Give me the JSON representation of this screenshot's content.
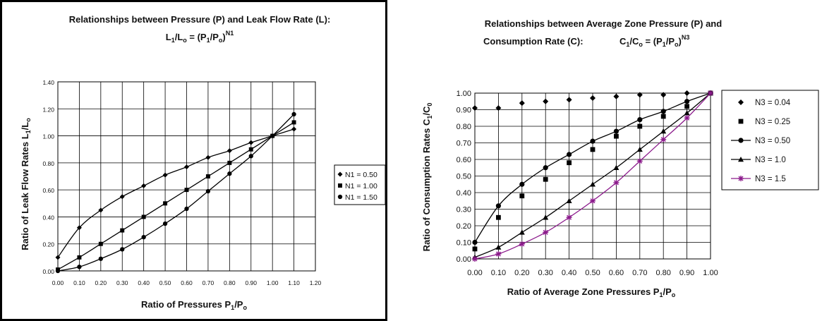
{
  "chart_data": [
    {
      "type": "line",
      "title_line1": "Relationships between Pressure (P) and Leak Flow Rate (L):",
      "formula": {
        "a": "L",
        "a_sub": "1",
        "mid": "/L",
        "b_sub": "o",
        "eq": " = (P",
        "p1_sub": "1",
        "slash": "/P",
        "po_sub": "o",
        "close": ")",
        "exp": "N1"
      },
      "xlabel": {
        "text": "Ratio of Pressures P",
        "sub1": "1",
        "mid": "/P",
        "sub2": "o"
      },
      "ylabel": {
        "text": "Ratio of Leak Flow Rates L",
        "sub1": "1",
        "mid": "/L",
        "sub2": "o"
      },
      "x_ticks": [
        "0.00",
        "0.10",
        "0.20",
        "0.30",
        "0.40",
        "0.50",
        "0.60",
        "0.70",
        "0.80",
        "0.90",
        "1.00",
        "1.10",
        "1.20"
      ],
      "y_ticks": [
        "0.00",
        "0.20",
        "0.40",
        "0.60",
        "0.80",
        "1.00",
        "1.20",
        "1.40"
      ],
      "xlim": [
        0,
        1.2
      ],
      "ylim": [
        0,
        1.4
      ],
      "grid": true,
      "legend_position": "right",
      "x": [
        0,
        0.1,
        0.2,
        0.3,
        0.4,
        0.5,
        0.6,
        0.7,
        0.8,
        0.9,
        1.0,
        1.1
      ],
      "series": [
        {
          "name": "N1 = 0.50",
          "marker": "diamond",
          "color": "#000000",
          "values": [
            0.1,
            0.32,
            0.45,
            0.55,
            0.63,
            0.71,
            0.77,
            0.84,
            0.89,
            0.95,
            1.0,
            1.05
          ]
        },
        {
          "name": "N1 = 1.00",
          "marker": "square",
          "color": "#000000",
          "values": [
            0.01,
            0.1,
            0.2,
            0.3,
            0.4,
            0.5,
            0.6,
            0.7,
            0.8,
            0.9,
            1.0,
            1.1
          ]
        },
        {
          "name": "N1 = 1.50",
          "marker": "circle",
          "color": "#000000",
          "values": [
            0.0,
            0.03,
            0.09,
            0.16,
            0.25,
            0.35,
            0.46,
            0.59,
            0.72,
            0.85,
            1.0,
            1.16
          ]
        }
      ]
    },
    {
      "type": "line",
      "title_line1": "Relationships between Average Zone Pressure (P) and",
      "title_line2": "Consumption Rate (C):",
      "formula": {
        "a": "C",
        "a_sub": "1",
        "mid": "/C",
        "b_sub": "o",
        "eq": " = (P",
        "p1_sub": "1",
        "slash": "/P",
        "po_sub": "o",
        "close": ")",
        "exp": "N3"
      },
      "xlabel": {
        "text": "Ratio of Average Zone Pressures P",
        "sub1": "1",
        "mid": "/P",
        "sub2": "o"
      },
      "ylabel": {
        "text": "Ratio of Consumption Rates C",
        "sub1": "1",
        "mid": "/C",
        "sub2": "0"
      },
      "x_ticks": [
        "0.00",
        "0.10",
        "0.20",
        "0.30",
        "0.40",
        "0.50",
        "0.60",
        "0.70",
        "0.80",
        "0.90",
        "1.00"
      ],
      "y_ticks": [
        "0.00",
        "0.10",
        "0.20",
        "0.30",
        "0.40",
        "0.50",
        "0.60",
        "0.70",
        "0.80",
        "0.90",
        "1.00"
      ],
      "xlim": [
        0,
        1.0
      ],
      "ylim": [
        0,
        1.0
      ],
      "grid": true,
      "legend_position": "right",
      "x": [
        0,
        0.1,
        0.2,
        0.3,
        0.4,
        0.5,
        0.6,
        0.7,
        0.8,
        0.9,
        1.0
      ],
      "series": [
        {
          "name": "N3 = 0.04",
          "marker": "diamond",
          "color": "#000000",
          "line": false,
          "values": [
            0.91,
            0.91,
            0.94,
            0.95,
            0.96,
            0.97,
            0.98,
            0.99,
            0.99,
            1.0,
            1.0
          ]
        },
        {
          "name": "N3 = 0.25",
          "marker": "square",
          "color": "#000000",
          "line": false,
          "values": [
            0.06,
            0.25,
            0.38,
            0.48,
            0.58,
            0.66,
            0.74,
            0.8,
            0.86,
            0.92,
            1.0
          ]
        },
        {
          "name": "N3 = 0.50",
          "marker": "circle",
          "color": "#000000",
          "line": true,
          "values": [
            0.1,
            0.32,
            0.45,
            0.55,
            0.63,
            0.71,
            0.77,
            0.84,
            0.89,
            0.95,
            1.0
          ]
        },
        {
          "name": "N3 = 1.0",
          "marker": "triangle",
          "color": "#000000",
          "line": true,
          "values": [
            0.01,
            0.07,
            0.16,
            0.25,
            0.35,
            0.45,
            0.55,
            0.66,
            0.77,
            0.88,
            1.0
          ]
        },
        {
          "name": "N3 = 1.5",
          "marker": "star",
          "color": "#8b1a8b",
          "line": true,
          "values": [
            0.0,
            0.03,
            0.09,
            0.16,
            0.25,
            0.35,
            0.46,
            0.59,
            0.72,
            0.85,
            1.0
          ]
        }
      ]
    }
  ]
}
